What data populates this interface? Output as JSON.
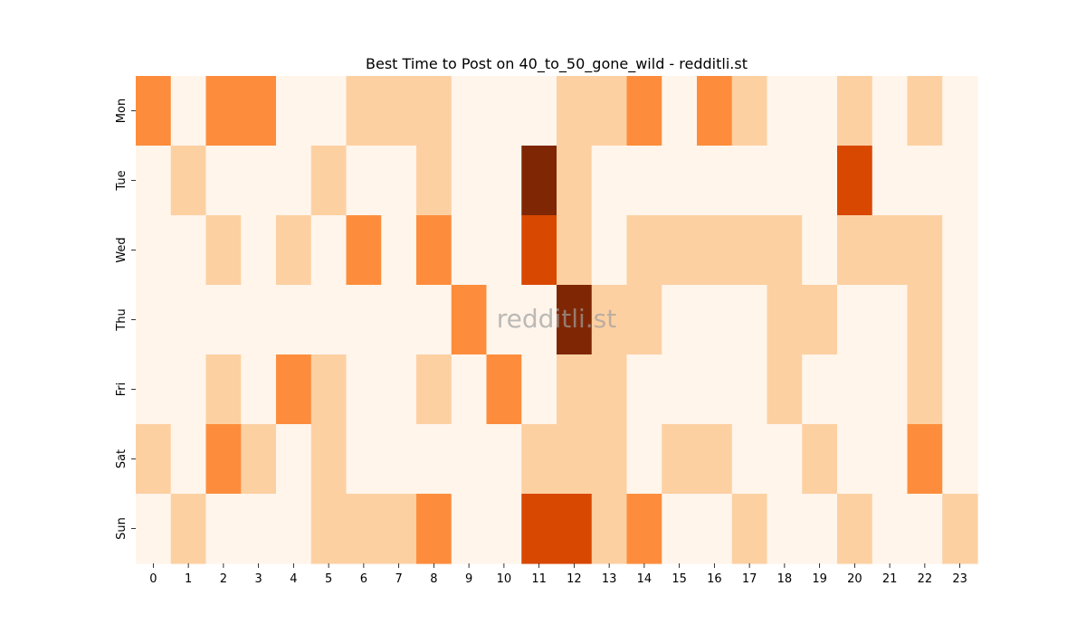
{
  "chart_data": {
    "type": "heatmap",
    "title": "Best Time to Post on 40_to_50_gone_wild - redditli.st",
    "xlabel": "",
    "ylabel": "",
    "x_categories": [
      "0",
      "1",
      "2",
      "3",
      "4",
      "5",
      "6",
      "7",
      "8",
      "9",
      "10",
      "11",
      "12",
      "13",
      "14",
      "15",
      "16",
      "17",
      "18",
      "19",
      "20",
      "21",
      "22",
      "23"
    ],
    "y_categories": [
      "Mon",
      "Tue",
      "Wed",
      "Thu",
      "Fri",
      "Sat",
      "Sun"
    ],
    "values": [
      [
        2,
        0,
        2,
        2,
        0,
        0,
        1,
        1,
        1,
        0,
        0,
        0,
        1,
        1,
        2,
        0,
        2,
        1,
        0,
        0,
        1,
        0,
        1,
        0
      ],
      [
        0,
        1,
        0,
        0,
        0,
        1,
        0,
        0,
        1,
        0,
        0,
        4,
        1,
        0,
        0,
        0,
        0,
        0,
        0,
        0,
        3,
        0,
        0,
        0
      ],
      [
        0,
        0,
        1,
        0,
        1,
        0,
        2,
        0,
        2,
        0,
        0,
        3,
        1,
        0,
        1,
        1,
        1,
        1,
        1,
        0,
        1,
        1,
        1,
        0
      ],
      [
        0,
        0,
        0,
        0,
        0,
        0,
        0,
        0,
        0,
        2,
        0,
        0,
        4,
        1,
        1,
        0,
        0,
        0,
        1,
        1,
        0,
        0,
        1,
        0
      ],
      [
        0,
        0,
        1,
        0,
        2,
        1,
        0,
        0,
        1,
        0,
        2,
        0,
        1,
        1,
        0,
        0,
        0,
        0,
        1,
        0,
        0,
        0,
        1,
        0
      ],
      [
        1,
        0,
        2,
        1,
        0,
        1,
        0,
        0,
        0,
        0,
        0,
        1,
        1,
        1,
        0,
        1,
        1,
        0,
        0,
        1,
        0,
        0,
        2,
        0
      ],
      [
        0,
        1,
        0,
        0,
        0,
        1,
        1,
        1,
        2,
        0,
        0,
        3,
        3,
        1,
        2,
        0,
        0,
        1,
        0,
        0,
        1,
        0,
        0,
        1
      ]
    ],
    "colorscale": [
      "#fff5eb",
      "#fdd0a2",
      "#fd8d3c",
      "#d94801",
      "#7f2704"
    ],
    "colorbar": false,
    "grid": false,
    "watermark": "redditli.st"
  }
}
